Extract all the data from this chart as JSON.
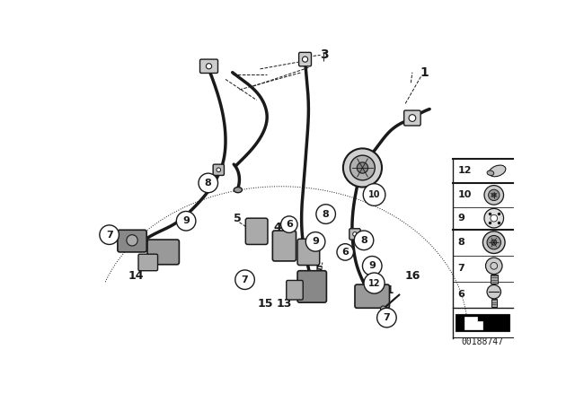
{
  "background_color": "#ffffff",
  "line_color": "#1a1a1a",
  "figsize": [
    6.4,
    4.48
  ],
  "dpi": 100,
  "watermark": "00188747"
}
